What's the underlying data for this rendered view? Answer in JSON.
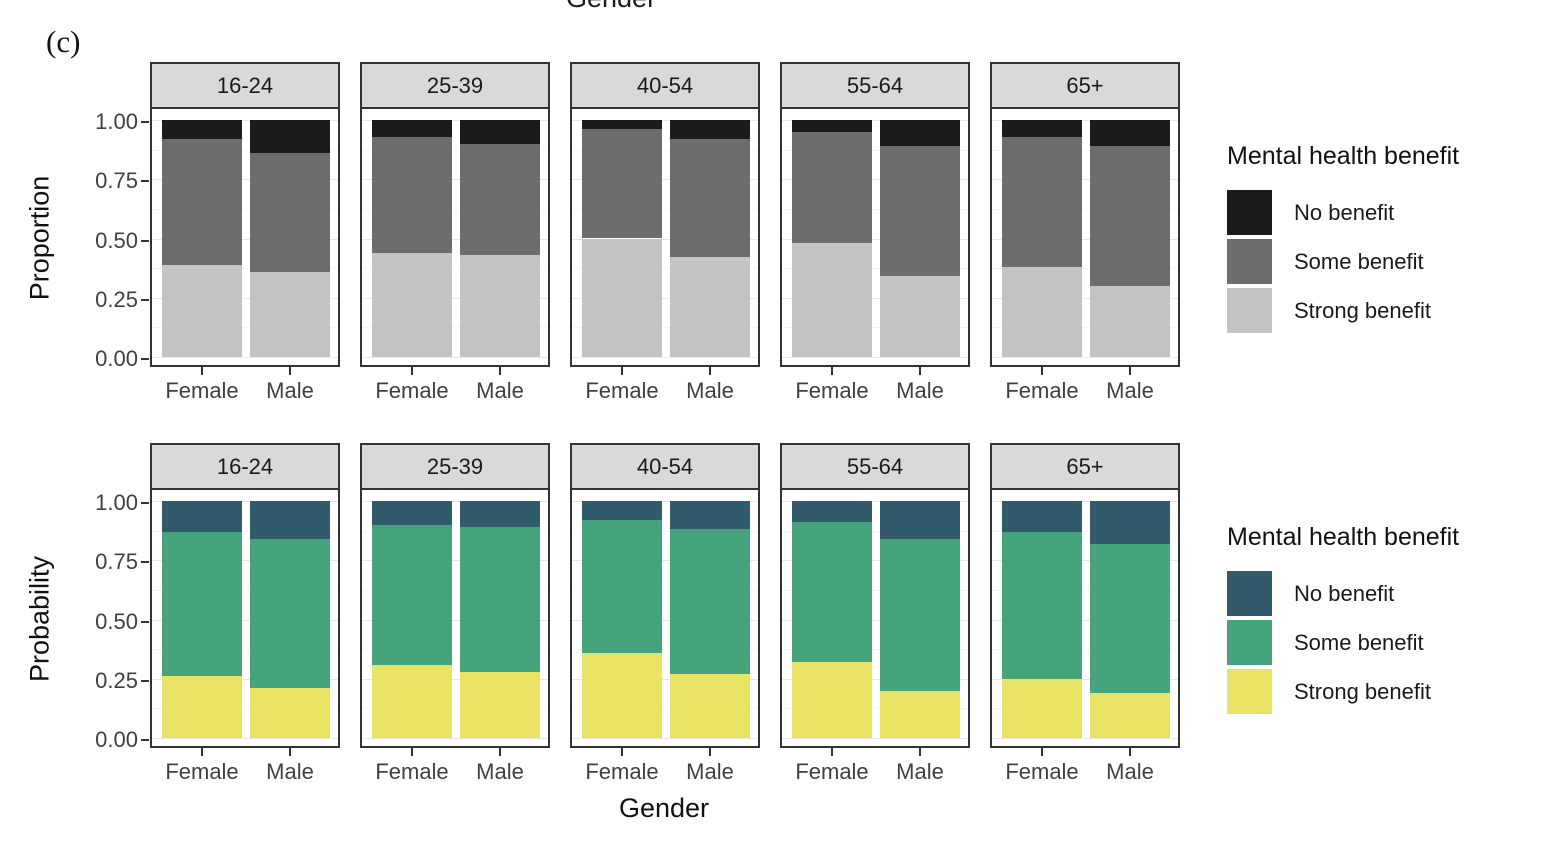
{
  "annotation": "(c)",
  "top_clipped_axis_title": "Gender",
  "x_axis_title": "Gender",
  "genders": [
    "Female",
    "Male"
  ],
  "y_ticks": [
    "1.00",
    "0.75",
    "0.50",
    "0.25",
    "0.00"
  ],
  "legend_order": [
    "No benefit",
    "Some benefit",
    "Strong benefit"
  ],
  "stack_order_bottom_to_top": [
    "Strong benefit",
    "Some benefit",
    "No benefit"
  ],
  "chart_data": {
    "type": "bar",
    "subtype": "stacked-proportion-faceted",
    "facets": [
      "16-24",
      "25-39",
      "40-54",
      "55-64",
      "65+"
    ],
    "categories": [
      "Female",
      "Male"
    ],
    "ylim": [
      0,
      1
    ],
    "grid": true,
    "legend_position": "right",
    "rows": [
      {
        "y_axis_title": "Proportion",
        "legend_title": "Mental health benefit",
        "palette": {
          "No benefit": "#1b1b1b",
          "Some benefit": "#6d6d6d",
          "Strong benefit": "#c4c4c4"
        },
        "values": {
          "16-24": {
            "Female": {
              "Strong benefit": 0.39,
              "Some benefit": 0.53,
              "No benefit": 0.08
            },
            "Male": {
              "Strong benefit": 0.36,
              "Some benefit": 0.5,
              "No benefit": 0.14
            }
          },
          "25-39": {
            "Female": {
              "Strong benefit": 0.44,
              "Some benefit": 0.49,
              "No benefit": 0.07
            },
            "Male": {
              "Strong benefit": 0.43,
              "Some benefit": 0.47,
              "No benefit": 0.1
            }
          },
          "40-54": {
            "Female": {
              "Strong benefit": 0.5,
              "Some benefit": 0.46,
              "No benefit": 0.04
            },
            "Male": {
              "Strong benefit": 0.42,
              "Some benefit": 0.5,
              "No benefit": 0.08
            }
          },
          "55-64": {
            "Female": {
              "Strong benefit": 0.48,
              "Some benefit": 0.47,
              "No benefit": 0.05
            },
            "Male": {
              "Strong benefit": 0.34,
              "Some benefit": 0.55,
              "No benefit": 0.11
            }
          },
          "65+": {
            "Female": {
              "Strong benefit": 0.38,
              "Some benefit": 0.55,
              "No benefit": 0.07
            },
            "Male": {
              "Strong benefit": 0.3,
              "Some benefit": 0.59,
              "No benefit": 0.11
            }
          }
        }
      },
      {
        "y_axis_title": "Probability",
        "legend_title": "Mental health benefit",
        "palette": {
          "No benefit": "#315a6b",
          "Some benefit": "#46a47d",
          "Strong benefit": "#e9e465"
        },
        "values": {
          "16-24": {
            "Female": {
              "Strong benefit": 0.26,
              "Some benefit": 0.61,
              "No benefit": 0.13
            },
            "Male": {
              "Strong benefit": 0.21,
              "Some benefit": 0.63,
              "No benefit": 0.16
            }
          },
          "25-39": {
            "Female": {
              "Strong benefit": 0.31,
              "Some benefit": 0.59,
              "No benefit": 0.1
            },
            "Male": {
              "Strong benefit": 0.28,
              "Some benefit": 0.61,
              "No benefit": 0.11
            }
          },
          "40-54": {
            "Female": {
              "Strong benefit": 0.36,
              "Some benefit": 0.56,
              "No benefit": 0.08
            },
            "Male": {
              "Strong benefit": 0.27,
              "Some benefit": 0.61,
              "No benefit": 0.12
            }
          },
          "55-64": {
            "Female": {
              "Strong benefit": 0.32,
              "Some benefit": 0.59,
              "No benefit": 0.09
            },
            "Male": {
              "Strong benefit": 0.2,
              "Some benefit": 0.64,
              "No benefit": 0.16
            }
          },
          "65+": {
            "Female": {
              "Strong benefit": 0.25,
              "Some benefit": 0.62,
              "No benefit": 0.13
            },
            "Male": {
              "Strong benefit": 0.19,
              "Some benefit": 0.63,
              "No benefit": 0.18
            }
          }
        }
      }
    ]
  }
}
